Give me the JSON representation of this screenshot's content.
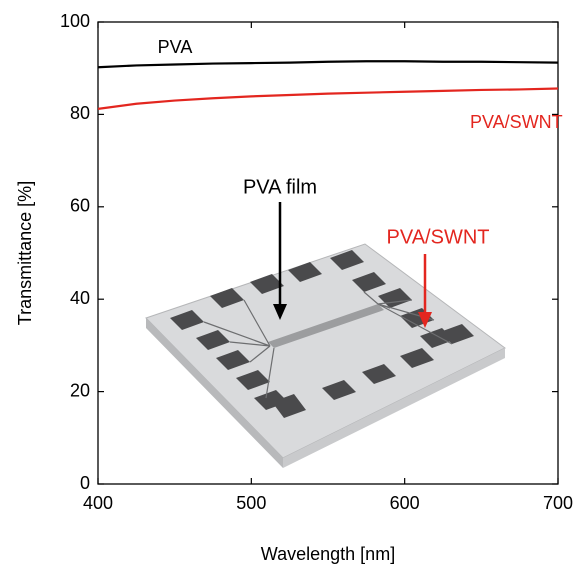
{
  "chart_data": {
    "type": "line",
    "xlabel": "Wavelength [nm]",
    "ylabel": "Transmittance [%]",
    "x": [
      400,
      425,
      450,
      475,
      500,
      525,
      550,
      575,
      600,
      625,
      650,
      675,
      700
    ],
    "series": [
      {
        "name": "PVA",
        "color": "#000000",
        "values": [
          90.2,
          90.6,
          90.8,
          91.0,
          91.1,
          91.2,
          91.4,
          91.5,
          91.5,
          91.4,
          91.4,
          91.3,
          91.2
        ]
      },
      {
        "name": "PVA/SWNT",
        "color": "#e3261f",
        "values": [
          81.2,
          82.3,
          83.0,
          83.5,
          83.9,
          84.2,
          84.5,
          84.7,
          84.9,
          85.1,
          85.3,
          85.4,
          85.6
        ]
      }
    ],
    "annotations": [
      "PVA film",
      "PVA/SWNT"
    ],
    "xlim": [
      400,
      700
    ],
    "xticks": [
      400,
      500,
      600,
      700
    ],
    "ylim": [
      0,
      100
    ],
    "yticks": [
      0,
      20,
      40,
      60,
      80,
      100
    ]
  }
}
